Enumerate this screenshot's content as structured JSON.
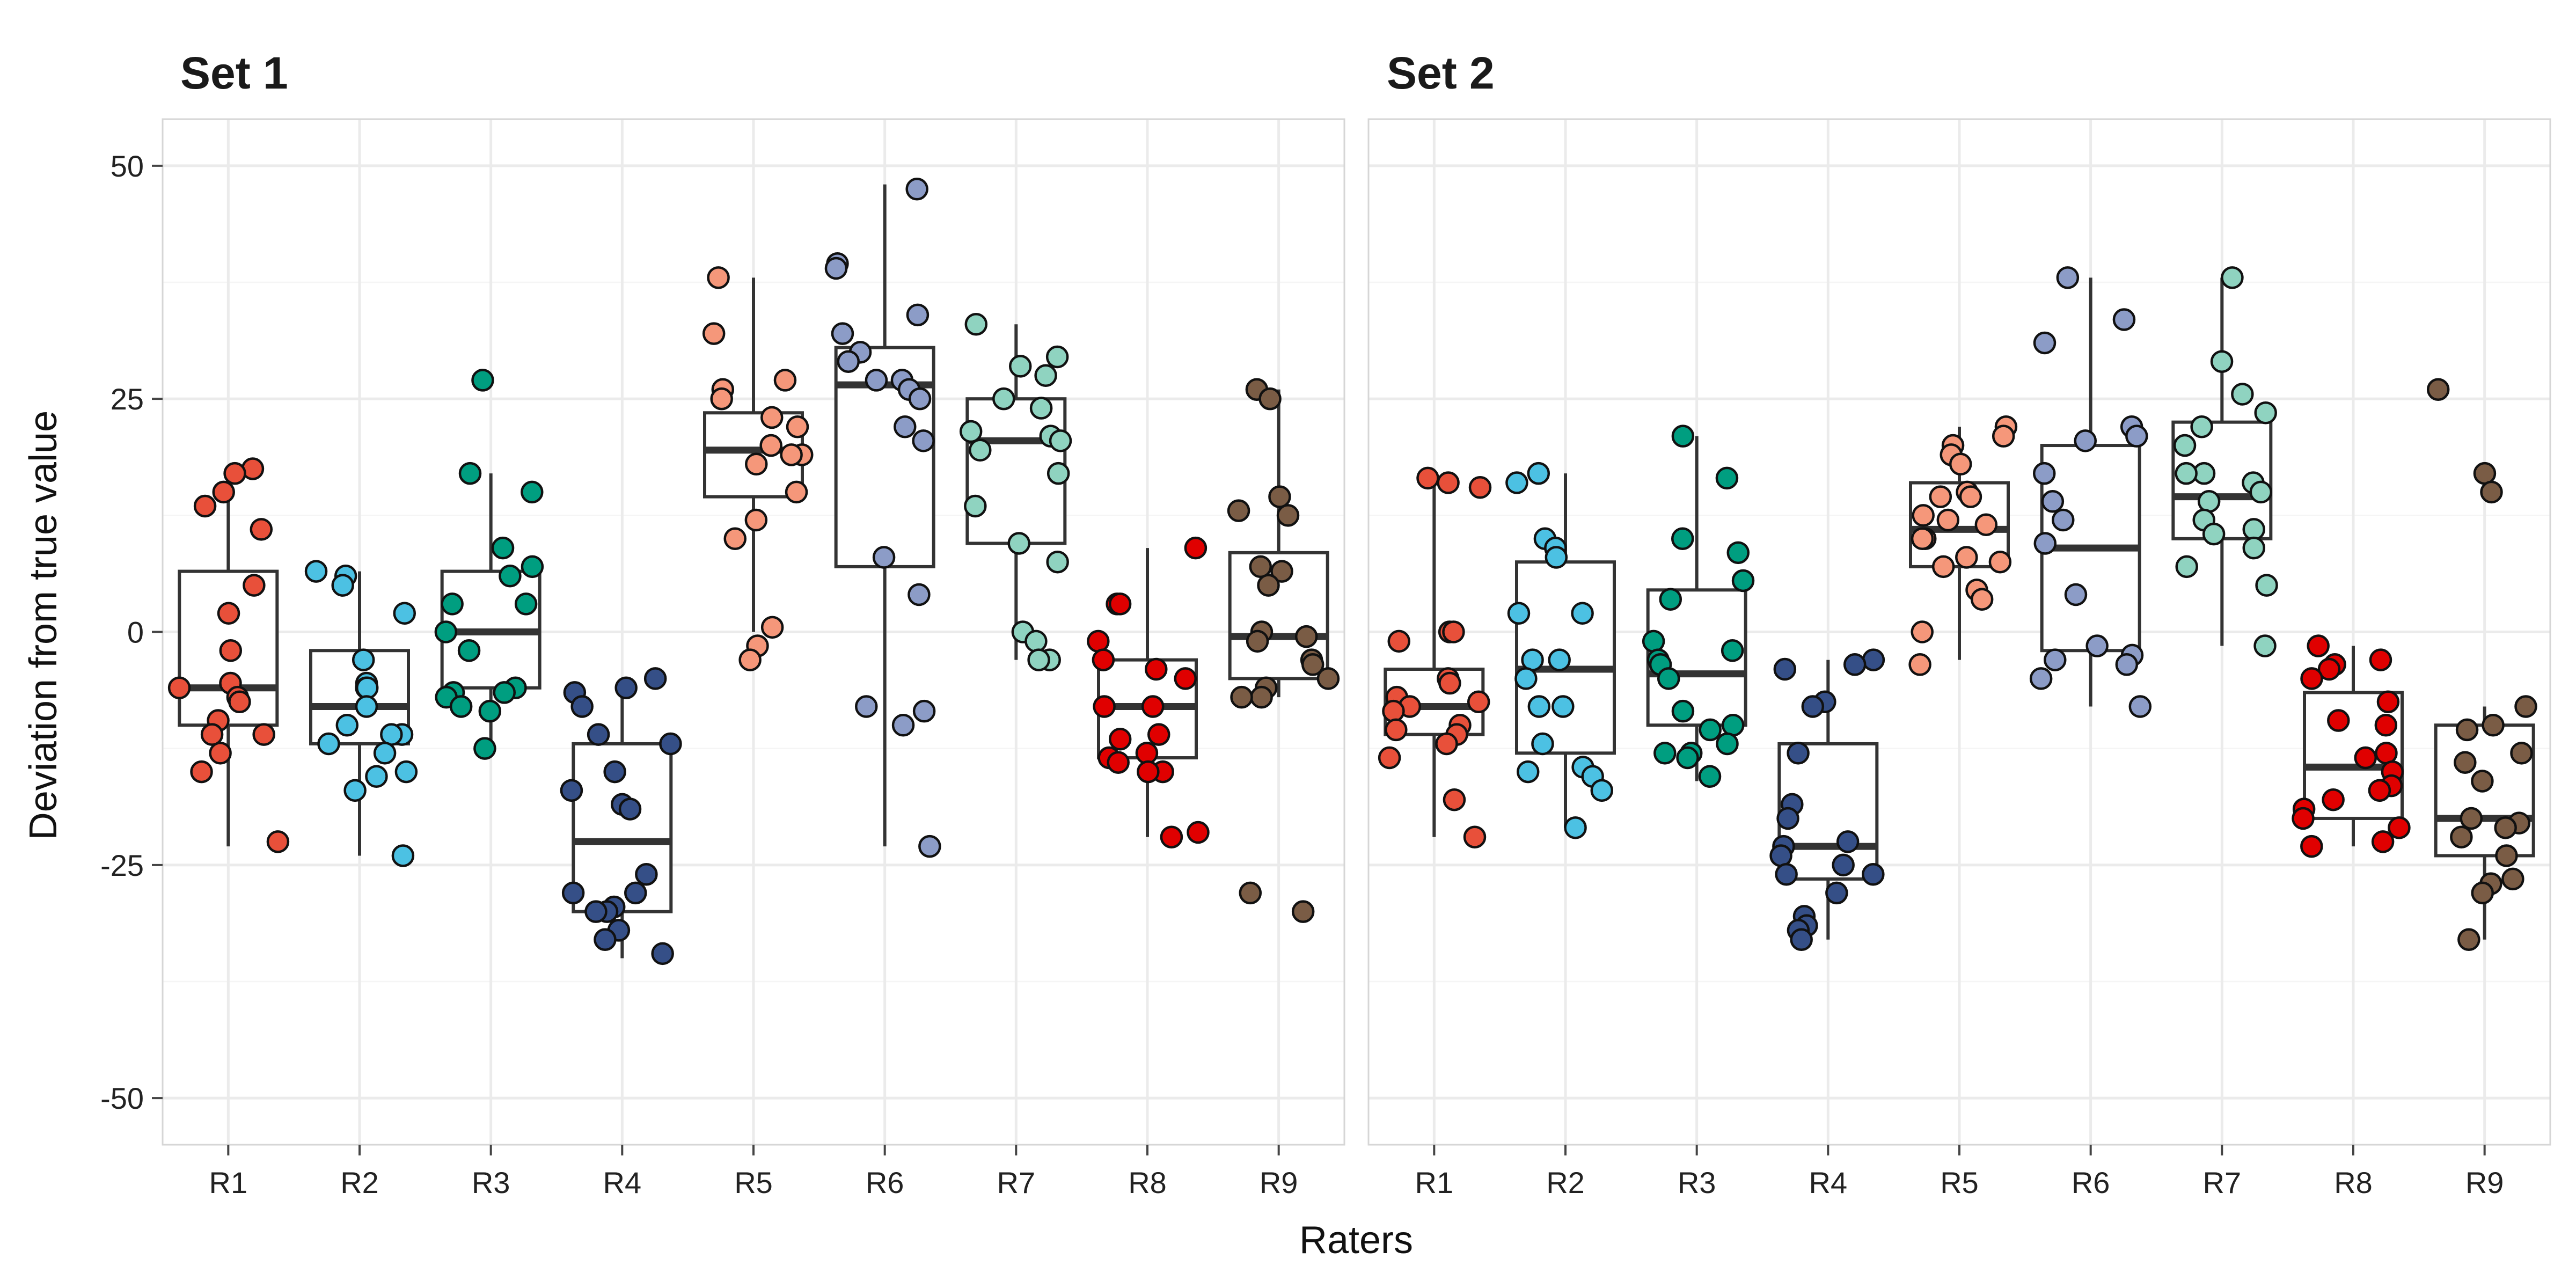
{
  "chart_data": {
    "type": "boxplot",
    "xlabel": "Raters",
    "ylabel": "Deviation from true value",
    "ylim": [
      -55,
      55
    ],
    "yticks": [
      -50,
      -25,
      0,
      25,
      50
    ],
    "grid": true,
    "categories": [
      "R1",
      "R2",
      "R3",
      "R4",
      "R5",
      "R6",
      "R7",
      "R8",
      "R9"
    ],
    "colors": {
      "R1": "#e8503a",
      "R2": "#4cc1e3",
      "R3": "#009e80",
      "R4": "#354f87",
      "R5": "#f5977a",
      "R6": "#8c9cc7",
      "R7": "#8fd3c0",
      "R8": "#e00000",
      "R9": "#7a5c45"
    },
    "panels": [
      {
        "title": "Set 1",
        "boxes": [
          {
            "rater": "R1",
            "q1": -10,
            "median": -6,
            "q3": 6.5,
            "whisker_low": -23,
            "whisker_high": 17.5
          },
          {
            "rater": "R2",
            "q1": -12,
            "median": -8,
            "q3": -2,
            "whisker_low": -24,
            "whisker_high": 6.5
          },
          {
            "rater": "R3",
            "q1": -6,
            "median": 0,
            "q3": 6.5,
            "whisker_low": -13,
            "whisker_high": 17
          },
          {
            "rater": "R4",
            "q1": -30,
            "median": -22.5,
            "q3": -12,
            "whisker_low": -35,
            "whisker_high": -5
          },
          {
            "rater": "R5",
            "q1": 14.5,
            "median": 19.5,
            "q3": 23.5,
            "whisker_low": 0,
            "whisker_high": 38
          },
          {
            "rater": "R6",
            "q1": 7,
            "median": 26.5,
            "q3": 30.5,
            "whisker_low": -23,
            "whisker_high": 48
          },
          {
            "rater": "R7",
            "q1": 9.5,
            "median": 20.5,
            "q3": 25,
            "whisker_low": -3,
            "whisker_high": 33
          },
          {
            "rater": "R8",
            "q1": -13.5,
            "median": -8,
            "q3": -3,
            "whisker_low": -22,
            "whisker_high": 9
          },
          {
            "rater": "R9",
            "q1": -5,
            "median": -0.5,
            "q3": 8.5,
            "whisker_low": -7,
            "whisker_high": 26
          }
        ],
        "points": [
          {
            "rater": "R1",
            "values": [
              17.5,
              17,
              15,
              13.5,
              11,
              5,
              2,
              -2,
              -5.5,
              -6,
              -7,
              -7.5,
              -9.5,
              -11,
              -11,
              -13,
              -15,
              -22.5
            ]
          },
          {
            "rater": "R2",
            "values": [
              6.5,
              6,
              5,
              2,
              -3,
              -5.5,
              -6,
              -6,
              -8,
              -10,
              -11,
              -11,
              -12,
              -13,
              -15.5,
              -15,
              -17,
              -24
            ]
          },
          {
            "rater": "R3",
            "values": [
              27,
              17,
              15,
              9,
              7,
              6,
              3,
              3,
              0,
              -2,
              -6,
              -6.5,
              -6.5,
              -7,
              -8,
              -8.5,
              -12.5
            ]
          },
          {
            "rater": "R4",
            "values": [
              -5,
              -6,
              -6.5,
              -8,
              -11,
              -12,
              -15,
              -17,
              -18.5,
              -19,
              -26,
              -28,
              -28,
              -29.5,
              -30,
              -30,
              -32,
              -33,
              -34.5
            ]
          },
          {
            "rater": "R5",
            "values": [
              38,
              32,
              27,
              26,
              25,
              23,
              22,
              20,
              19,
              19,
              18,
              15,
              12,
              10,
              0.5,
              -1.5,
              -3
            ]
          },
          {
            "rater": "R6",
            "values": [
              47.5,
              39.5,
              39,
              34,
              32,
              30,
              29,
              27,
              27,
              26,
              25,
              22,
              20.5,
              8,
              4,
              -8,
              -8.5,
              -10,
              -23
            ]
          },
          {
            "rater": "R7",
            "values": [
              33,
              29.5,
              28.5,
              27.5,
              25,
              24,
              21.5,
              21,
              20.5,
              19.5,
              17,
              13.5,
              9.5,
              7.5,
              0,
              -1,
              -3,
              -3
            ]
          },
          {
            "rater": "R8",
            "values": [
              9,
              3,
              3,
              -1,
              -3,
              -4,
              -5,
              -8,
              -8,
              -11,
              -11.5,
              -13,
              -13.5,
              -14,
              -15,
              -15,
              -21.5,
              -22
            ]
          },
          {
            "rater": "R9",
            "values": [
              26,
              25,
              14.5,
              13,
              12.5,
              7,
              6.5,
              5,
              0,
              -0.5,
              -1,
              -3,
              -3.5,
              -5,
              -6,
              -7,
              -7,
              -28,
              -30
            ]
          }
        ]
      },
      {
        "title": "Set 2",
        "boxes": [
          {
            "rater": "R1",
            "q1": -11,
            "median": -8,
            "q3": -4,
            "whisker_low": -22,
            "whisker_high": 16.5
          },
          {
            "rater": "R2",
            "q1": -13,
            "median": -4,
            "q3": 7.5,
            "whisker_low": -21,
            "whisker_high": 17
          },
          {
            "rater": "R3",
            "q1": -10,
            "median": -4.5,
            "q3": 4.5,
            "whisker_low": -16,
            "whisker_high": 21
          },
          {
            "rater": "R4",
            "q1": -26.5,
            "median": -23,
            "q3": -12,
            "whisker_low": -33,
            "whisker_high": -3
          },
          {
            "rater": "R5",
            "q1": 7,
            "median": 11,
            "q3": 16,
            "whisker_low": -3,
            "whisker_high": 22
          },
          {
            "rater": "R6",
            "q1": -2,
            "median": 9,
            "q3": 20,
            "whisker_low": -8,
            "whisker_high": 38
          },
          {
            "rater": "R7",
            "q1": 10,
            "median": 14.5,
            "q3": 22.5,
            "whisker_low": -1.5,
            "whisker_high": 38
          },
          {
            "rater": "R8",
            "q1": -20,
            "median": -14.5,
            "q3": -6.5,
            "whisker_low": -23,
            "whisker_high": -1.5
          },
          {
            "rater": "R9",
            "q1": -24,
            "median": -20,
            "q3": -10,
            "whisker_low": -33,
            "whisker_high": -8
          }
        ],
        "points": [
          {
            "rater": "R1",
            "values": [
              16.5,
              16,
              15.5,
              0,
              0,
              -1,
              -5,
              -5.5,
              -7,
              -7.5,
              -8,
              -8.5,
              -10,
              -10.5,
              -11,
              -12,
              -13.5,
              -18,
              -22
            ]
          },
          {
            "rater": "R2",
            "values": [
              17,
              16,
              10,
              9,
              8,
              2,
              2,
              -3,
              -3,
              -5,
              -8,
              -8,
              -12,
              -14.5,
              -15,
              -15.5,
              -17,
              -21
            ]
          },
          {
            "rater": "R3",
            "values": [
              21,
              16.5,
              10,
              8.5,
              5.5,
              3.5,
              -1,
              -2,
              -3,
              -3.5,
              -5,
              -8.5,
              -10,
              -10.5,
              -12,
              -13,
              -13,
              -13.5,
              -15.5
            ]
          },
          {
            "rater": "R4",
            "values": [
              -3,
              -3.5,
              -4,
              -7.5,
              -8,
              -13,
              -18.5,
              -20,
              -22.5,
              -23,
              -24,
              -25,
              -26,
              -26,
              -28,
              -30.5,
              -31.5,
              -32,
              -33
            ]
          },
          {
            "rater": "R5",
            "values": [
              22,
              21,
              20,
              19,
              18,
              15,
              14.5,
              14.5,
              12.5,
              12,
              11.5,
              10,
              10,
              8,
              7.5,
              7,
              4.5,
              3.5,
              0,
              -3.5
            ]
          },
          {
            "rater": "R6",
            "values": [
              38,
              33.5,
              31,
              22,
              21,
              20.5,
              17,
              14,
              12,
              9.5,
              4,
              -1.5,
              -2.5,
              -3,
              -3.5,
              -5,
              -8
            ]
          },
          {
            "rater": "R7",
            "values": [
              38,
              29,
              25.5,
              23.5,
              22,
              20,
              17,
              17,
              16,
              15,
              14,
              12,
              11,
              10.5,
              9,
              7,
              5,
              -1.5
            ]
          },
          {
            "rater": "R8",
            "values": [
              -1.5,
              -3,
              -3.5,
              -4,
              -5,
              -7.5,
              -9.5,
              -10,
              -13,
              -13.5,
              -15,
              -16.5,
              -17,
              -18,
              -19,
              -20,
              -21,
              -22.5,
              -23
            ]
          },
          {
            "rater": "R9",
            "values": [
              26,
              17,
              15,
              -8,
              -10,
              -10.5,
              -13,
              -14,
              -16,
              -20,
              -20.5,
              -21,
              -22,
              -24,
              -26.5,
              -27,
              -28,
              -33
            ]
          }
        ]
      }
    ]
  }
}
